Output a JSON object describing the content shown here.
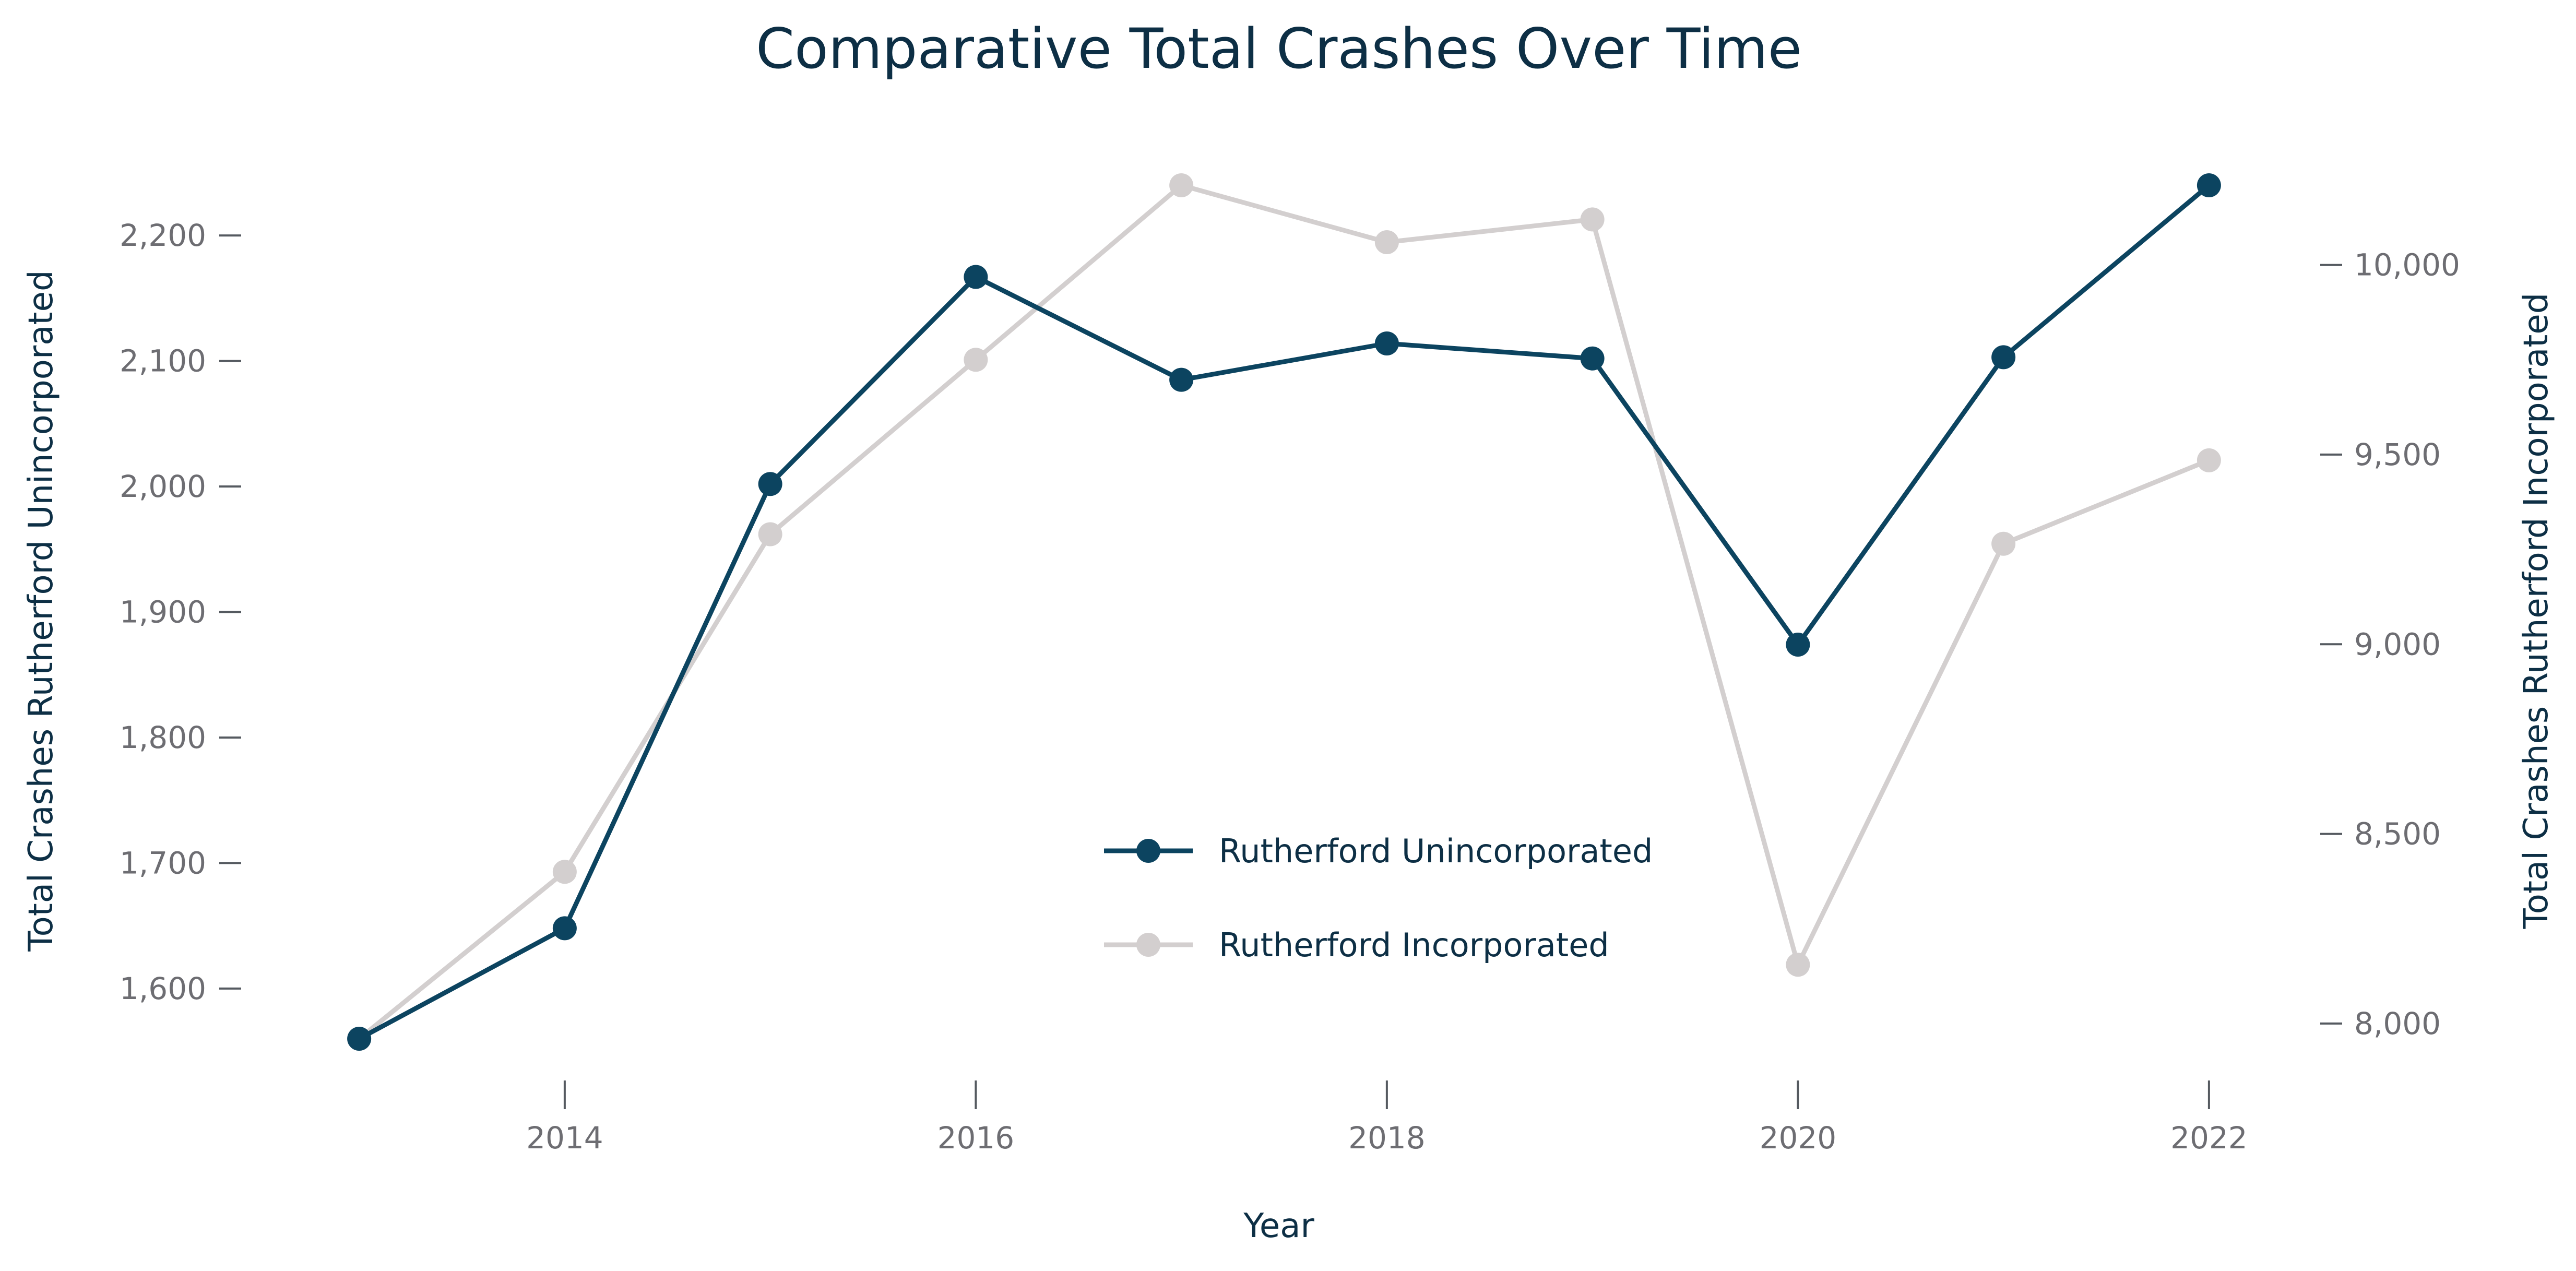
{
  "chart_data": {
    "type": "line",
    "title": "Comparative Total Crashes Over Time",
    "xlabel": "Year",
    "ylabel_left": "Total Crashes Rutherford Unincorporated",
    "ylabel_right": "Total Crashes Rutherford Incorporated",
    "x": [
      2013,
      2014,
      2015,
      2016,
      2017,
      2018,
      2019,
      2020,
      2021,
      2022
    ],
    "x_ticks": [
      "2014",
      "2016",
      "2018",
      "2020",
      "2022"
    ],
    "x_tick_values": [
      2014,
      2016,
      2018,
      2020,
      2022
    ],
    "xlim": [
      2012.7,
      2022.3
    ],
    "y_left_ticks": [
      "1,600",
      "1,700",
      "1,800",
      "1,900",
      "2,000",
      "2,100",
      "2,200"
    ],
    "y_left_tick_values": [
      1600,
      1700,
      1800,
      1900,
      2000,
      2100,
      2200
    ],
    "ylim_left": [
      1560,
      2240
    ],
    "y_right_ticks": [
      "8,000",
      "8,500",
      "9,000",
      "9,500",
      "10,000"
    ],
    "y_right_tick_values": [
      8000,
      8500,
      9000,
      9500,
      10000
    ],
    "ylim_right": [
      7960,
      10210
    ],
    "grid": false,
    "legend_position": "center-bottom",
    "series": [
      {
        "name": "Rutherford Unincorporated",
        "axis": "left",
        "color": "#0c4460",
        "values": [
          1560,
          1648,
          2002,
          2167,
          2085,
          2114,
          2102,
          1874,
          2103,
          2240
        ]
      },
      {
        "name": "Rutherford Incorporated",
        "axis": "right",
        "color": "#d3cfcf",
        "values": [
          7960,
          8400,
          9290,
          9750,
          10210,
          10060,
          10120,
          8155,
          9265,
          9485
        ]
      }
    ]
  }
}
